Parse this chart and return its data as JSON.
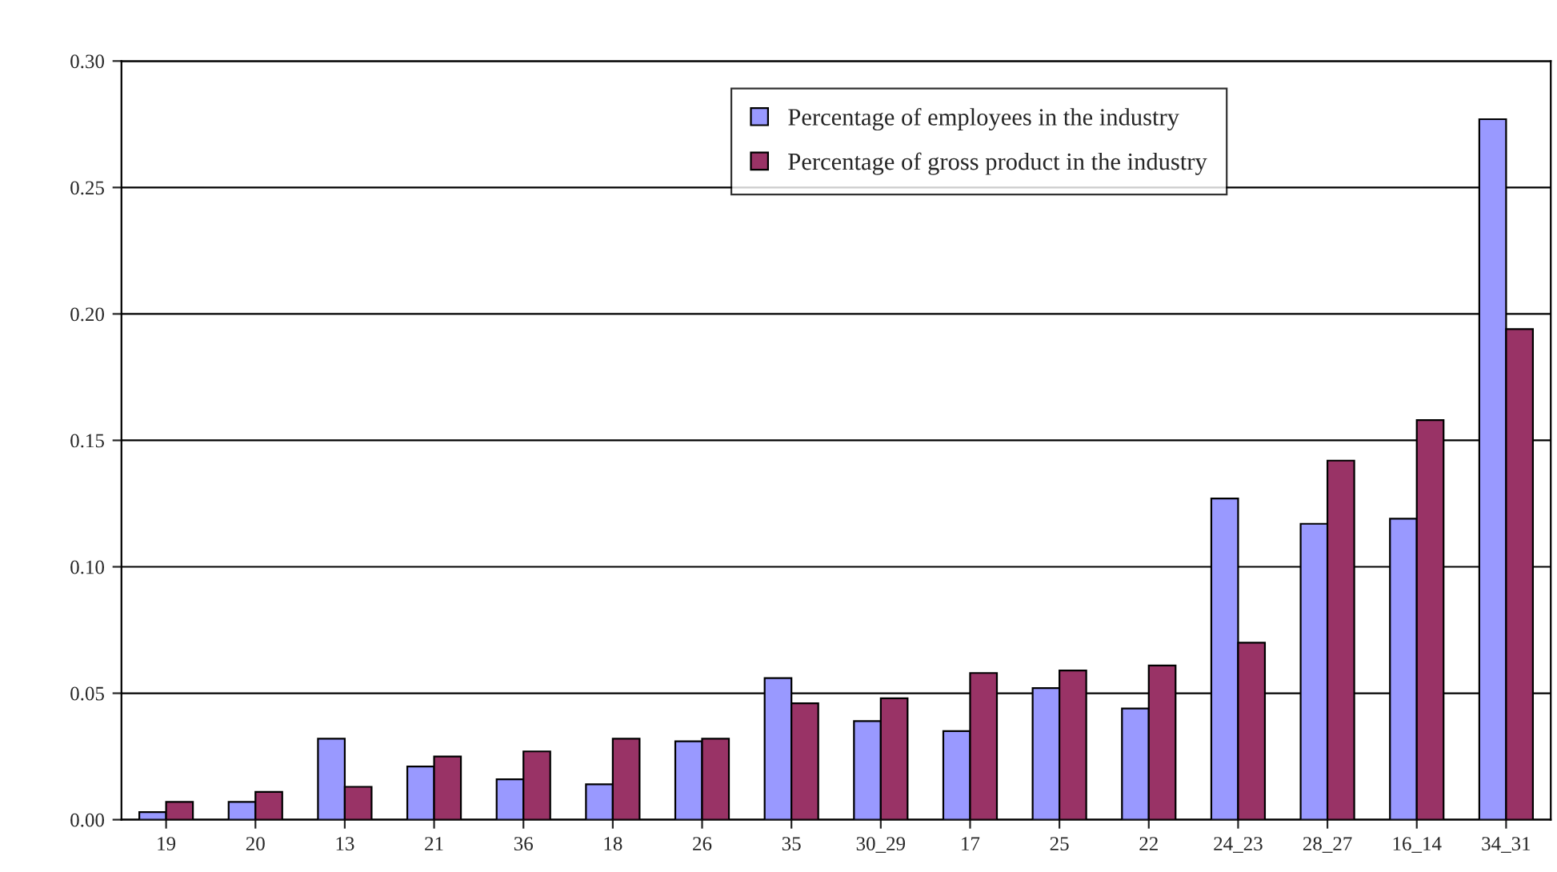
{
  "chart_data": {
    "type": "bar",
    "categories": [
      "19",
      "20",
      "13",
      "21",
      "36",
      "18",
      "26",
      "35",
      "30_29",
      "17",
      "25",
      "22",
      "24_23",
      "28_27",
      "16_14",
      "34_31"
    ],
    "series": [
      {
        "name": "Percentage of employees in the industry",
        "color": "#9999ff",
        "values": [
          0.003,
          0.007,
          0.032,
          0.021,
          0.016,
          0.014,
          0.031,
          0.056,
          0.039,
          0.035,
          0.052,
          0.044,
          0.127,
          0.117,
          0.119,
          0.277
        ]
      },
      {
        "name": "Percentage of gross product in the industry",
        "color": "#993366",
        "values": [
          0.007,
          0.011,
          0.013,
          0.025,
          0.027,
          0.032,
          0.032,
          0.046,
          0.048,
          0.058,
          0.059,
          0.061,
          0.07,
          0.142,
          0.158,
          0.194
        ]
      }
    ],
    "ylim": [
      0,
      0.3
    ],
    "yticks": [
      {
        "value": 0,
        "label": "0.00"
      },
      {
        "value": 0.05,
        "label": "0.05"
      },
      {
        "value": 0.1,
        "label": "0.10"
      },
      {
        "value": 0.15,
        "label": "0.15"
      },
      {
        "value": 0.2,
        "label": "0.20"
      },
      {
        "value": 0.25,
        "label": "0.25"
      },
      {
        "value": 0.3,
        "label": "0.30"
      }
    ],
    "grid": "y",
    "legend": "top"
  }
}
